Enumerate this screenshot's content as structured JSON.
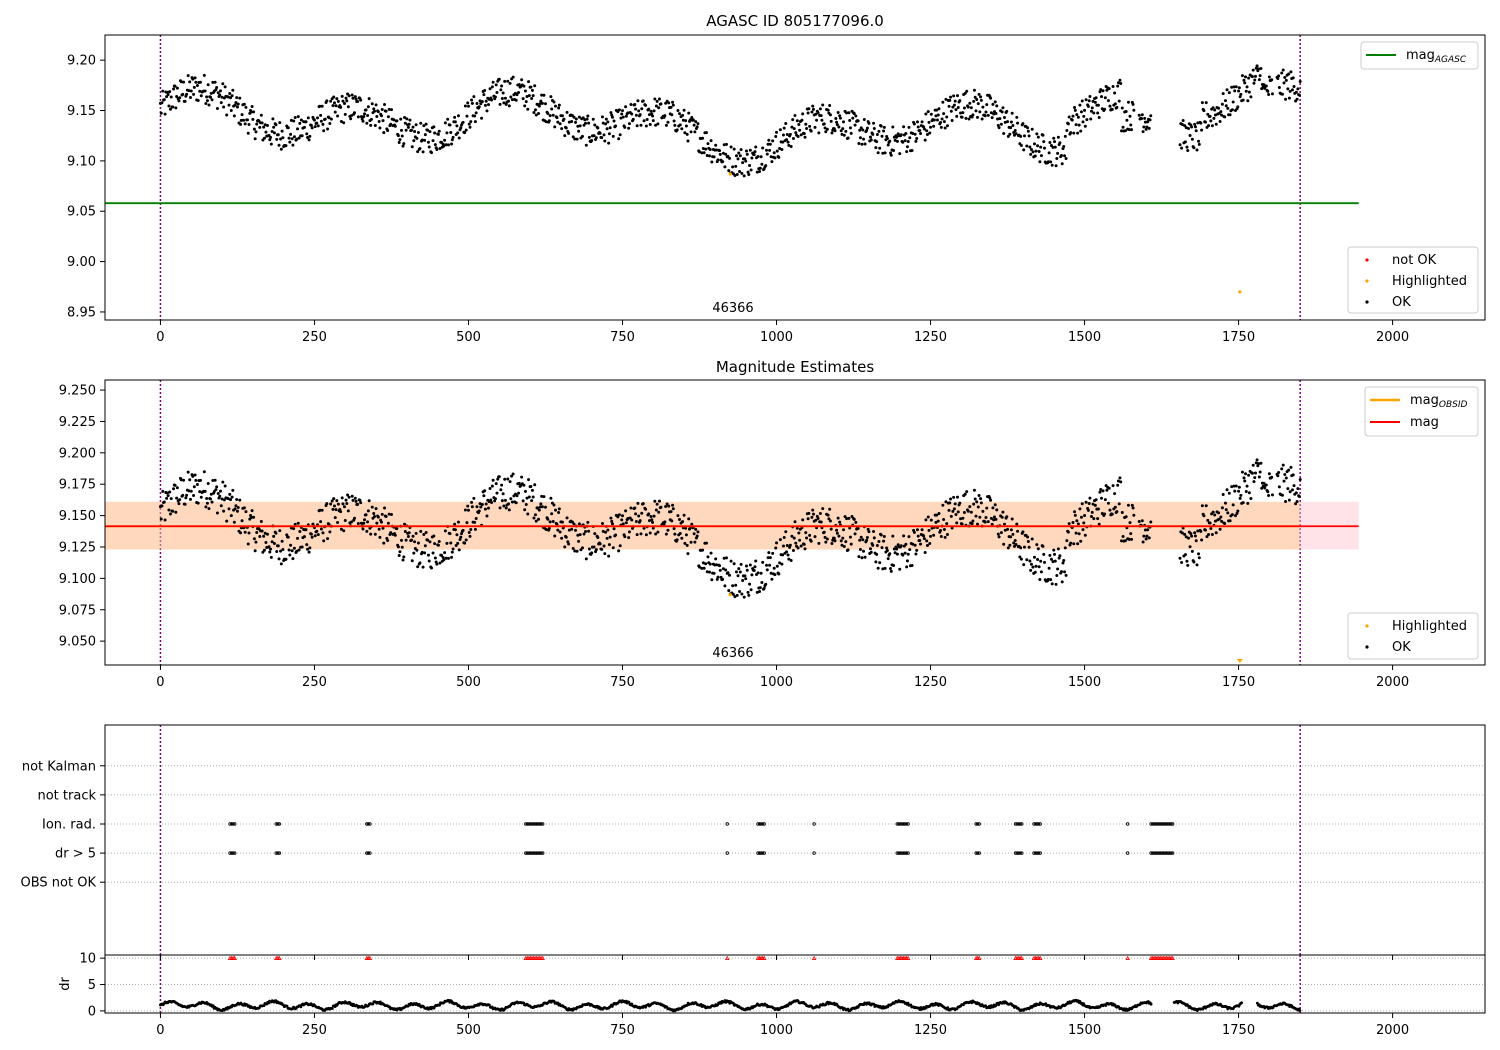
{
  "colors": {
    "ok": "#000000",
    "not_ok": "#ff0000",
    "highlighted": "#ffa500",
    "mag_agasc": "#008000",
    "mag_obsid": "#ffa500",
    "mag": "#ff0000",
    "band": "#ffc0cb",
    "vline": "#800080"
  },
  "chart_data": [
    {
      "type": "scatter",
      "title": "AGASC ID 805177096.0",
      "xlim": [
        -90,
        2150
      ],
      "ylim": [
        8.942,
        9.225
      ],
      "xticks": [
        0,
        250,
        500,
        750,
        1000,
        1250,
        1500,
        1750,
        2000
      ],
      "yticks": [
        8.95,
        9.0,
        9.05,
        9.1,
        9.15,
        9.2
      ],
      "ytick_labels": [
        "8.95",
        "9.00",
        "9.05",
        "9.10",
        "9.15",
        "9.20"
      ],
      "lines": [
        {
          "name": "mag",
          "sub": "AGASC",
          "y": 9.058,
          "x": [
            -90,
            1945
          ],
          "color": "#008000"
        }
      ],
      "vlines": [
        0,
        1850
      ],
      "annotation": {
        "text": "46366",
        "x": 925,
        "y": 8.952
      },
      "highlighted_points": [
        {
          "x": 925,
          "y": 9.087
        },
        {
          "x": 1752,
          "y": 8.97
        }
      ],
      "legend_lines": [
        {
          "name": "mag",
          "sub": "AGASC"
        }
      ],
      "legend_points": [
        "not OK",
        "Highlighted",
        "OK"
      ],
      "series": [
        {
          "name": "OK",
          "description_ranges_x": [
            0,
            1850
          ],
          "y_mean": 9.14,
          "y_min": 9.09,
          "y_max": 9.19
        }
      ]
    },
    {
      "type": "scatter",
      "title": "Magnitude Estimates",
      "xlim": [
        -90,
        2150
      ],
      "ylim": [
        9.031,
        9.258
      ],
      "xticks": [
        0,
        250,
        500,
        750,
        1000,
        1250,
        1500,
        1750,
        2000
      ],
      "yticks": [
        9.05,
        9.075,
        9.1,
        9.125,
        9.15,
        9.175,
        9.2,
        9.225,
        9.25
      ],
      "ytick_labels": [
        "9.050",
        "9.075",
        "9.100",
        "9.125",
        "9.150",
        "9.175",
        "9.200",
        "9.225",
        "9.250"
      ],
      "lines": [
        {
          "name": "mag",
          "sub": "OBSID",
          "y": 9.1415,
          "x": [
            -90,
            1850
          ],
          "color": "#ffa500",
          "band": [
            9.123,
            9.161
          ]
        },
        {
          "name": "mag",
          "y": 9.1415,
          "x": [
            -90,
            1945
          ],
          "color": "#ff0000",
          "band": [
            9.123,
            9.161
          ]
        }
      ],
      "vlines": [
        0,
        1850
      ],
      "annotation": {
        "text": "46366",
        "x": 925,
        "y": 9.037
      },
      "highlighted_points": [
        {
          "x": 925,
          "y": 9.087
        }
      ],
      "offscale_marker": {
        "x": 1752,
        "y": 9.033
      },
      "legend_lines": [
        {
          "name": "mag",
          "sub": "OBSID"
        },
        {
          "name": "mag"
        }
      ],
      "legend_points": [
        "Highlighted",
        "OK"
      ],
      "series": [
        {
          "name": "OK",
          "description_ranges_x": [
            0,
            1850
          ],
          "y_mean": 9.14,
          "y_min": 9.09,
          "y_max": 9.19
        }
      ]
    },
    {
      "type": "scatter",
      "title": "",
      "xlim": [
        -90,
        2150
      ],
      "ylim": [
        -1.5,
        6.4
      ],
      "xticks": [
        0,
        250,
        500,
        750,
        1000,
        1250,
        1500,
        1750,
        2000
      ],
      "categories": [
        "not Kalman",
        "not track",
        "Ion. rad.",
        "dr > 5",
        "OBS not OK"
      ],
      "category_y": [
        5,
        4,
        3,
        2,
        1
      ],
      "flag_x_ranges": [
        [
          113,
          122
        ],
        [
          188,
          195
        ],
        [
          335,
          340
        ],
        [
          593,
          622
        ],
        [
          920,
          922
        ],
        [
          970,
          980
        ],
        [
          1061,
          1063
        ],
        [
          1196,
          1215
        ],
        [
          1324,
          1330
        ],
        [
          1388,
          1400
        ],
        [
          1418,
          1428
        ],
        [
          1570,
          1572
        ],
        [
          1608,
          1645
        ]
      ],
      "flagged_rows": [
        "Ion. rad.",
        "dr > 5"
      ],
      "vlines": [
        0,
        1850
      ]
    },
    {
      "type": "scatter",
      "title": "",
      "ylabel": "dr",
      "xlim": [
        -90,
        2150
      ],
      "ylim": [
        -0.4,
        10.6
      ],
      "xticks": [
        0,
        250,
        500,
        750,
        1000,
        1250,
        1500,
        1750,
        2000
      ],
      "yticks": [
        0,
        5,
        10
      ],
      "ytick_labels": [
        "0",
        "5",
        "10"
      ],
      "capped_value": 10,
      "series": [
        {
          "name": "dr",
          "y_mean": 1.0,
          "y_min": 0.2,
          "y_max": 2.2,
          "gaps_x": [
            [
              1608,
              1645
            ],
            [
              1755,
              1780
            ]
          ]
        }
      ],
      "vlines": [
        0,
        1850
      ]
    }
  ]
}
